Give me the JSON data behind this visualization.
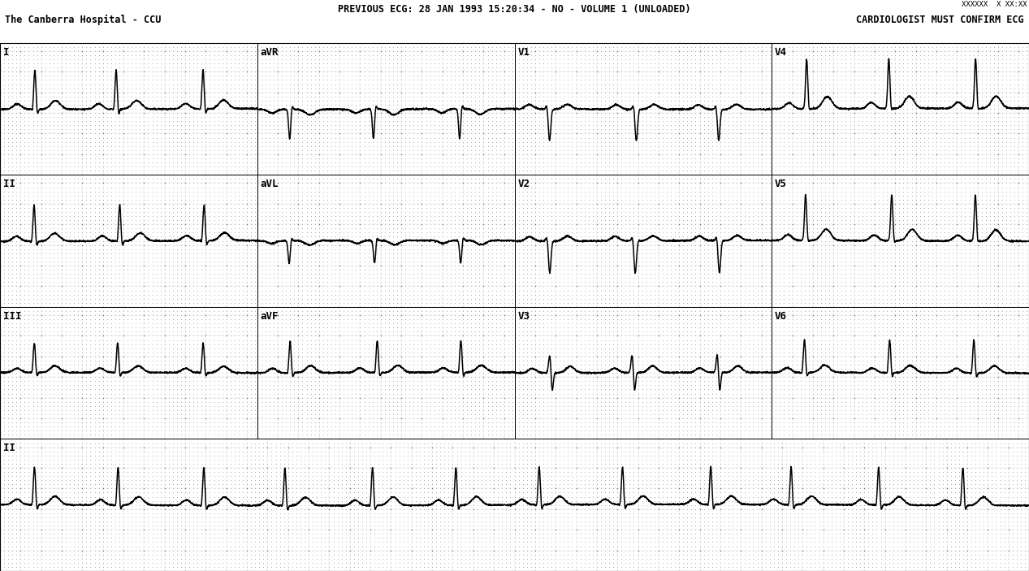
{
  "title_center": "PREVIOUS ECG: 28 JAN 1993 15:20:34 - NO - VOLUME 1 (UNLOADED)",
  "title_left": "The Canberra Hospital - CCU",
  "title_right": "CARDIOLOGIST MUST CONFIRM ECG",
  "top_right_small": "XXXXXX  X XX:XX",
  "bg_color": "#ffffff",
  "grid_dot_color": "#aaaaaa",
  "grid_major_color": "#888888",
  "ecg_color": "#000000",
  "text_color": "#000000",
  "leads_row1": [
    "I",
    "aVR",
    "V1",
    "V4"
  ],
  "leads_row2": [
    "II",
    "aVL",
    "V2",
    "V5"
  ],
  "leads_row3": [
    "III",
    "aVF",
    "V3",
    "V6"
  ],
  "rhythm_lead": "II",
  "fs": 500,
  "duration_lead": 2.5,
  "duration_rhythm": 10.0,
  "rr_interval": 0.82,
  "ecg_linewidth": 1.1,
  "header_fontsize": 8.5,
  "label_fontsize": 9
}
